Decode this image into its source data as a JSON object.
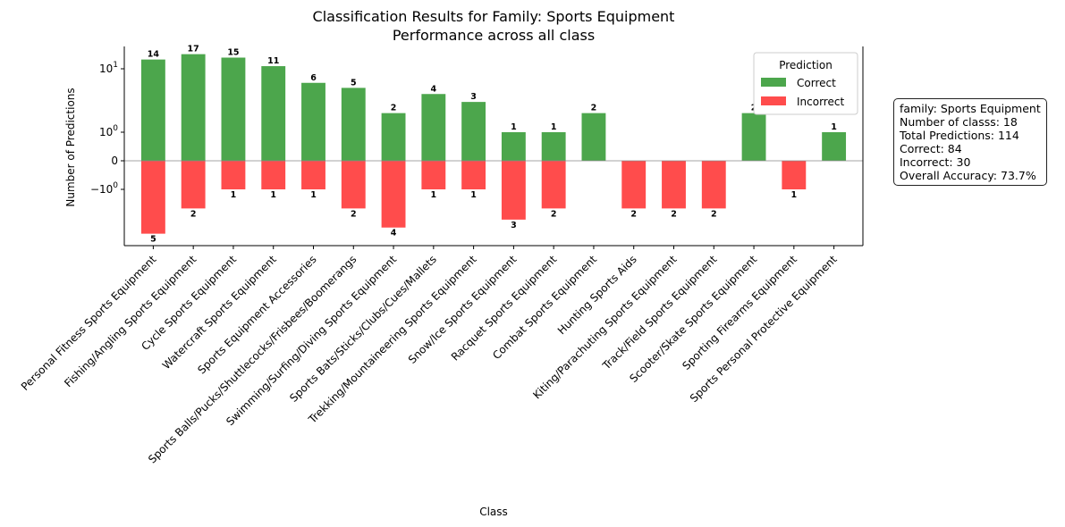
{
  "chart_data": {
    "type": "bar",
    "title": "Classification Results for Family: Sports Equipment",
    "subtitle": "Performance across all class",
    "xlabel": "Class",
    "ylabel": "Number of Predictions",
    "yscale": "symlog",
    "yticks": [
      "10",
      "10",
      "0",
      "−10"
    ],
    "ytick_exponents": [
      "1",
      "0",
      "",
      "0"
    ],
    "categories": [
      "Personal Fitness Sports Equipment",
      "Fishing/Angling Sports Equipment",
      "Cycle Sports Equipment",
      "Watercraft Sports Equipment",
      "Sports Equipment Accessories",
      "Sports Balls/Pucks/Shuttlecocks/Frisbees/Boomerangs",
      "Swimming/Surfing/Diving Sports Equipment",
      "Sports Bats/Sticks/Clubs/Cues/Mallets",
      "Trekking/Mountaineering Sports Equipment",
      "Snow/Ice Sports Equipment",
      "Racquet Sports Equipment",
      "Combat Sports Equipment",
      "Hunting Sports Aids",
      "Kiting/Parachuting Sports Equipment",
      "Track/Field Sports Equipment",
      "Scooter/Skate Sports Equipment",
      "Sporting Firearms Equipment",
      "Sports Personal Protective Equipment"
    ],
    "series": [
      {
        "name": "Correct",
        "color": "#4ca64c",
        "values": [
          14,
          17,
          15,
          11,
          6,
          5,
          2,
          4,
          3,
          1,
          1,
          2,
          0,
          0,
          0,
          2,
          0,
          1
        ]
      },
      {
        "name": "Incorrect",
        "color": "#ff4c4c",
        "values": [
          5,
          2,
          1,
          1,
          1,
          2,
          4,
          1,
          1,
          3,
          2,
          0,
          2,
          2,
          2,
          0,
          1,
          0
        ]
      }
    ],
    "legend": {
      "title": "Prediction",
      "placement": "top-right"
    },
    "grid": false
  },
  "info_box": {
    "lines": [
      "family: Sports Equipment",
      "Number of classs: 18",
      "Total Predictions: 114",
      "Correct: 84",
      "Incorrect: 30",
      "Overall Accuracy: 73.7%"
    ]
  }
}
